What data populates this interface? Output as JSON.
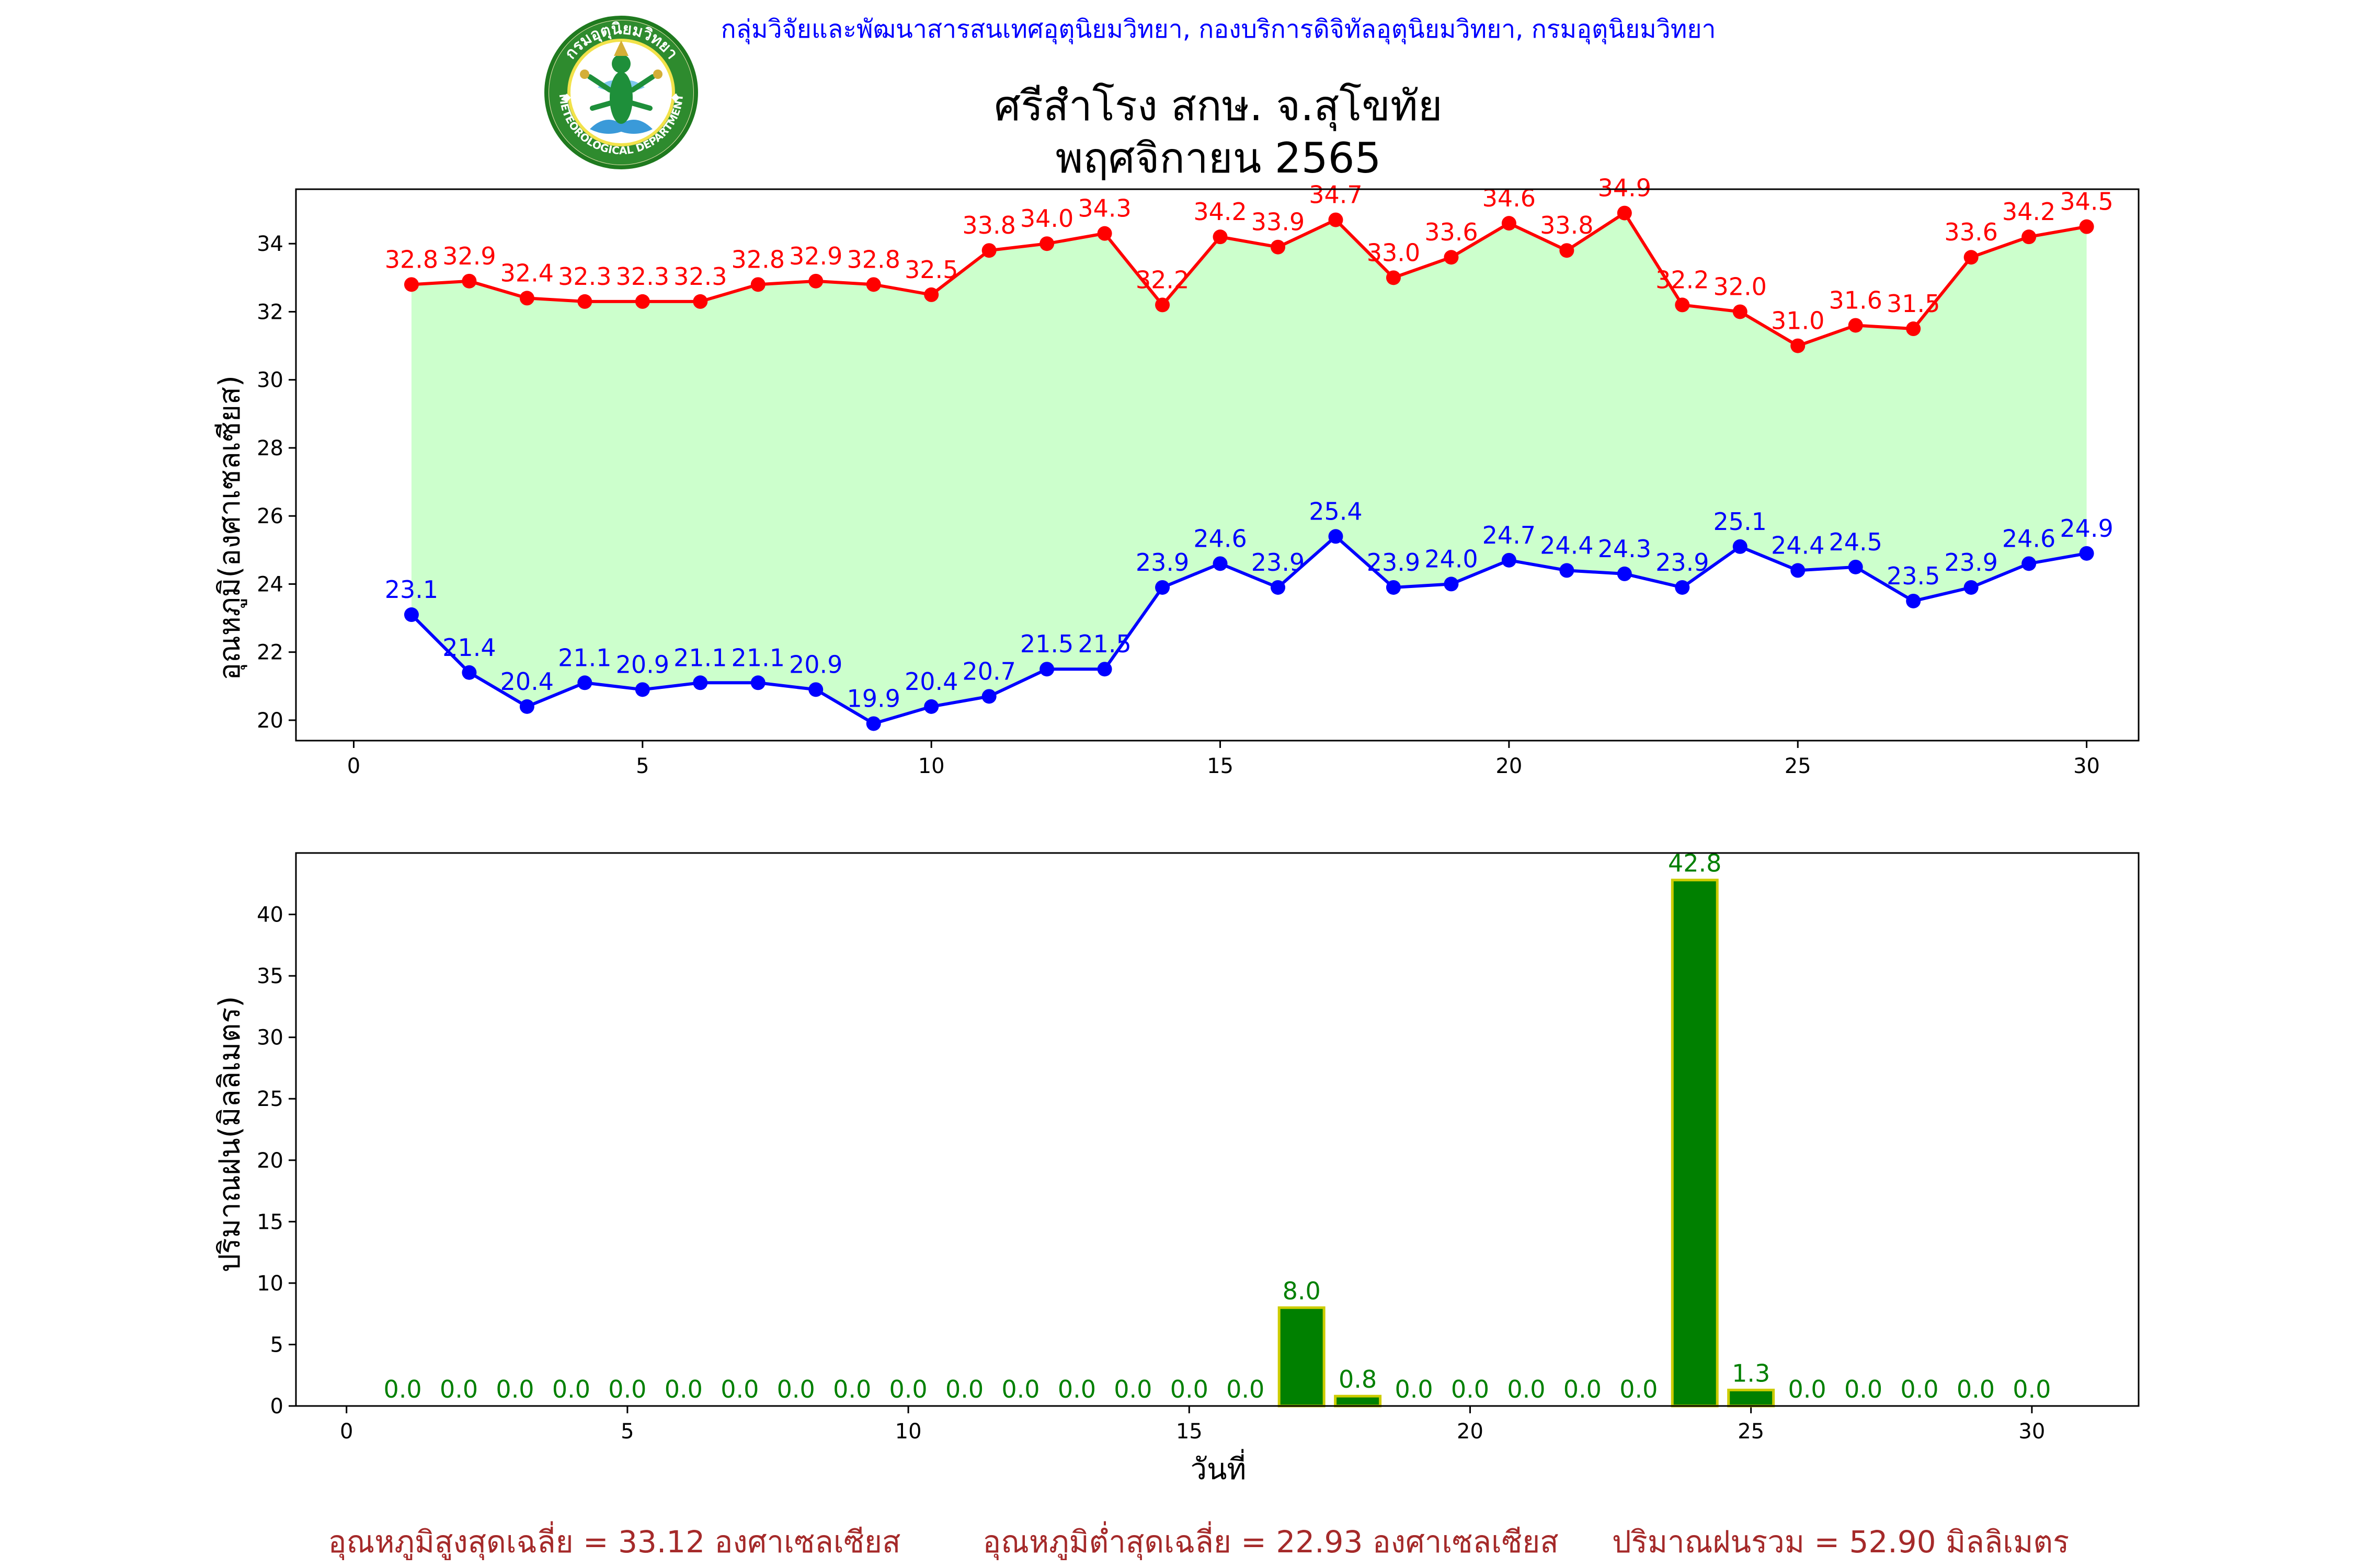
{
  "header": {
    "organization": "กลุ่มวิจัยและพัฒนาสารสนเทศอุตุนิยมวิทยา, กองบริการดิจิทัลอุตุนิยมวิทยา, กรมอุตุนิยมวิทยา",
    "station": "ศรีสำโรง สกษ. จ.สุโขทัย",
    "month": "พฤศจิกายน 2565"
  },
  "logo": {
    "top_text": "กรมอุตุนิยมวิทยา",
    "bottom_text": "METEOROLOGICAL DEPARTMENT"
  },
  "summary": {
    "avg_max": "อุณหภูมิสูงสุดเฉลี่ย = 33.12 องศาเซลเซียส",
    "avg_min": "อุณหภูมิต่ำสุดเฉลี่ย = 22.93 องศาเซลเซียส",
    "total_rain": "ปริมาณฝนรวม = 52.90 มิลลิเมตร"
  },
  "colors": {
    "max": "#ff0000",
    "min": "#0000ff",
    "band": "#ccffcc",
    "rain_fill": "#008000",
    "rain_edge": "#cccc00",
    "header": "#0000ff",
    "summary": "#a52a2a"
  },
  "chart_data": [
    {
      "type": "line",
      "ylabel": "อุณหภูมิ(องศาเซลเซียส)",
      "xlabel": "",
      "x": [
        1,
        2,
        3,
        4,
        5,
        6,
        7,
        8,
        9,
        10,
        11,
        12,
        13,
        14,
        15,
        16,
        17,
        18,
        19,
        20,
        21,
        22,
        23,
        24,
        25,
        26,
        27,
        28,
        29,
        30
      ],
      "xlim": [
        -1,
        30.9
      ],
      "ylim": [
        19.4,
        35.6
      ],
      "xticks": [
        0,
        5,
        10,
        15,
        20,
        25,
        30
      ],
      "yticks": [
        20,
        22,
        24,
        26,
        28,
        30,
        32,
        34
      ],
      "series": [
        {
          "role": "max",
          "values": [
            32.8,
            32.9,
            32.4,
            32.3,
            32.3,
            32.3,
            32.8,
            32.9,
            32.8,
            32.5,
            33.8,
            34.0,
            34.3,
            32.2,
            34.2,
            33.9,
            34.7,
            33.0,
            33.6,
            34.6,
            33.8,
            34.9,
            32.2,
            32.0,
            31.0,
            31.6,
            31.5,
            33.6,
            34.2,
            34.5
          ]
        },
        {
          "role": "min",
          "values": [
            23.1,
            21.4,
            20.4,
            21.1,
            20.9,
            21.1,
            21.1,
            20.9,
            19.9,
            20.4,
            20.7,
            21.5,
            21.5,
            23.9,
            24.6,
            23.9,
            25.4,
            23.9,
            24.0,
            24.7,
            24.4,
            24.3,
            23.9,
            25.1,
            24.4,
            24.5,
            23.5,
            23.9,
            24.6,
            24.9
          ]
        }
      ],
      "fill_between": true,
      "grid": false
    },
    {
      "type": "bar",
      "ylabel": "ปริมาณฝน(มิลลิเมตร)",
      "xlabel": "วันที่",
      "x": [
        1,
        2,
        3,
        4,
        5,
        6,
        7,
        8,
        9,
        10,
        11,
        12,
        13,
        14,
        15,
        16,
        17,
        18,
        19,
        20,
        21,
        22,
        23,
        24,
        25,
        26,
        27,
        28,
        29,
        30
      ],
      "values": [
        0.0,
        0.0,
        0.0,
        0.0,
        0.0,
        0.0,
        0.0,
        0.0,
        0.0,
        0.0,
        0.0,
        0.0,
        0.0,
        0.0,
        0.0,
        0.0,
        8.0,
        0.8,
        0.0,
        0.0,
        0.0,
        0.0,
        0.0,
        42.8,
        1.3,
        0.0,
        0.0,
        0.0,
        0.0,
        0.0
      ],
      "xlim": [
        -0.9,
        31.9
      ],
      "ylim": [
        0,
        45
      ],
      "xticks": [
        0,
        5,
        10,
        15,
        20,
        25,
        30
      ],
      "yticks": [
        0,
        5,
        10,
        15,
        20,
        25,
        30,
        35,
        40
      ],
      "grid": false
    }
  ]
}
